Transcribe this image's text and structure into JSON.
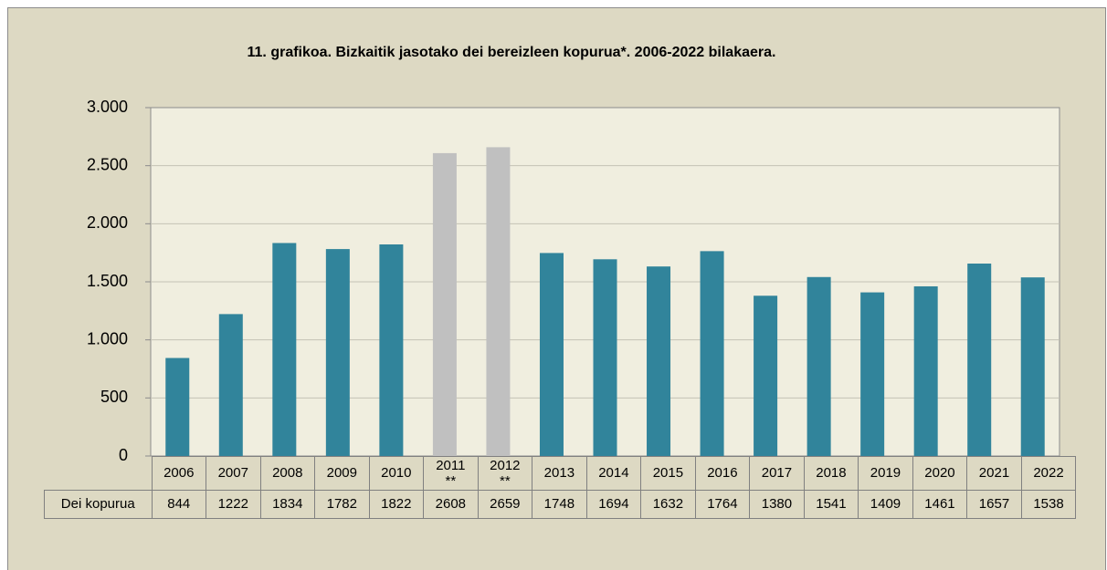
{
  "chart_data": {
    "type": "bar",
    "title": "11. grafikoa. Bizkaitik jasotako dei bereizleen kopurua*. 2006-2022 bilakaera.",
    "categories": [
      "2006",
      "2007",
      "2008",
      "2009",
      "2010",
      "2011\n**",
      "2012\n**",
      "2013",
      "2014",
      "2015",
      "2016",
      "2017",
      "2018",
      "2019",
      "2020",
      "2021",
      "2022"
    ],
    "series": [
      {
        "name": "Dei kopurua",
        "colors": [
          "#31849b",
          "#31849b",
          "#31849b",
          "#31849b",
          "#31849b",
          "#c0c0c0",
          "#c0c0c0",
          "#31849b",
          "#31849b",
          "#31849b",
          "#31849b",
          "#31849b",
          "#31849b",
          "#31849b",
          "#31849b",
          "#31849b",
          "#31849b"
        ],
        "values": [
          844,
          1222,
          1834,
          1782,
          1822,
          2608,
          2659,
          1748,
          1694,
          1632,
          1764,
          1380,
          1541,
          1409,
          1461,
          1657,
          1538
        ]
      }
    ],
    "ylim": [
      0,
      3000
    ],
    "yticks": [
      0,
      500,
      {
        "value": 1000,
        "label": "1.000"
      },
      {
        "value": 1500,
        "label": "1.500"
      },
      {
        "value": 2000,
        "label": "2.000"
      },
      {
        "value": 2500,
        "label": "2.500"
      },
      {
        "value": 3000,
        "label": "3.000"
      }
    ],
    "grid": true
  }
}
